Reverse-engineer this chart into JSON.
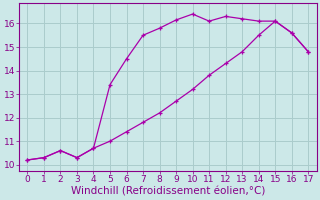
{
  "xlabel": "Windchill (Refroidissement éolien,°C)",
  "background_color": "#cce8e8",
  "line_color": "#aa00aa",
  "marker": "+",
  "xlim": [
    -0.5,
    17.5
  ],
  "ylim": [
    9.75,
    16.85
  ],
  "xticks": [
    0,
    1,
    2,
    3,
    4,
    5,
    6,
    7,
    8,
    9,
    10,
    11,
    12,
    13,
    14,
    15,
    16,
    17
  ],
  "yticks": [
    10,
    11,
    12,
    13,
    14,
    15,
    16
  ],
  "grid_color": "#aacccc",
  "x_upper": [
    0,
    1,
    2,
    3,
    4,
    5,
    6,
    7,
    8,
    9,
    10,
    11,
    12,
    13,
    14,
    15,
    16,
    17
  ],
  "y_upper": [
    10.2,
    10.3,
    10.6,
    10.3,
    10.7,
    13.4,
    14.5,
    15.5,
    15.8,
    16.15,
    16.4,
    16.1,
    16.3,
    16.2,
    16.1,
    16.1,
    15.6,
    14.8
  ],
  "x_lower": [
    0,
    1,
    2,
    3,
    4,
    5,
    6,
    7,
    8,
    9,
    10,
    11,
    12,
    13,
    14,
    15,
    16,
    17
  ],
  "y_lower": [
    10.2,
    10.3,
    10.6,
    10.3,
    10.7,
    11.0,
    11.4,
    11.8,
    12.2,
    12.7,
    13.2,
    13.8,
    14.3,
    14.8,
    15.5,
    16.1,
    15.6,
    14.8
  ],
  "font_color": "#880088",
  "tick_fontsize": 6.5,
  "xlabel_fontsize": 7.5
}
